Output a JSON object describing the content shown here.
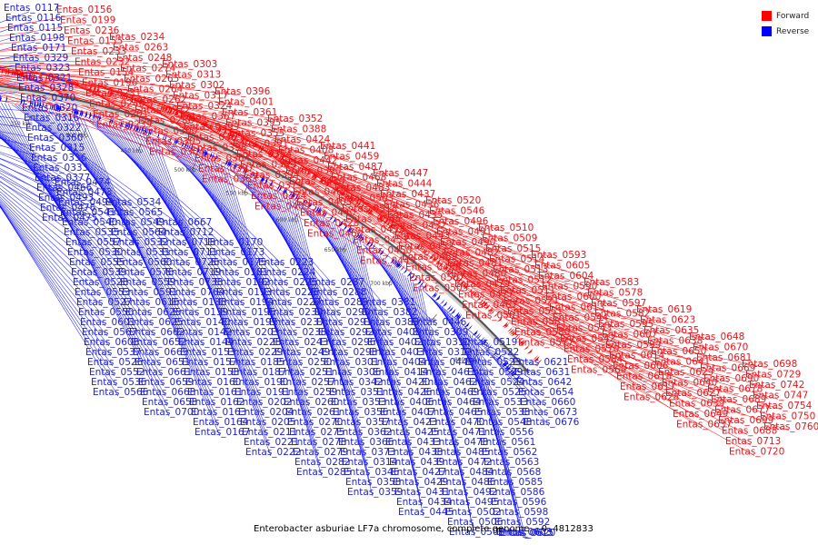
{
  "caption": "Enterobacter asburiae LF7a chromosome, complete genome. - 0..4812833",
  "legend": {
    "forward_label": "Forward",
    "reverse_label": "Reverse",
    "forward_color": "#ff0000",
    "reverse_color": "#0000ff"
  },
  "ticks": [
    "150 kbp",
    "200 kbp",
    "250 kbp",
    "300 kbp",
    "350 kbp",
    "400 kbp",
    "450 kbp",
    "500 kbp",
    "550 kbp",
    "600 kbp",
    "650 kbp",
    "700 kbp",
    "750 kbp",
    "800 kbp"
  ],
  "labels_forward": [
    "Entas_0156",
    "Entas_0199",
    "Entas_0236",
    "Entas_0155",
    "Entas_0233",
    "Entas_0232",
    "Entas_0154",
    "Entas_0196",
    "Entas_0231",
    "Entas_0240",
    "Entas_0201",
    "Entas_0239",
    "Entas_0234",
    "Entas_0263",
    "Entas_0248",
    "Entas_0274",
    "Entas_0265",
    "Entas_0264",
    "Entas_0262",
    "Entas_0272",
    "Entas_0286",
    "Entas_0300",
    "Entas_0305",
    "Entas_0304",
    "Entas_0303",
    "Entas_0313",
    "Entas_0302",
    "Entas_0317",
    "Entas_0324",
    "Entas_0367",
    "Entas_0399",
    "Entas_0365",
    "Entas_0398",
    "Entas_0364",
    "Entas_0397",
    "Entas_0363",
    "Entas_0396",
    "Entas_0401",
    "Entas_0361",
    "Entas_0395",
    "Entas_0355",
    "Entas_0391",
    "Entas_0354",
    "Entas_0389",
    "Entas_0394",
    "Entas_0379",
    "Entas_0374",
    "Entas_0409",
    "Entas_0352",
    "Entas_0388",
    "Entas_0424",
    "Entas_0408",
    "Entas_0442",
    "Entas_0390",
    "Entas_0430",
    "Entas_0463",
    "Entas_0405",
    "Entas_0440",
    "Entas_0428",
    "Entas_0460",
    "Entas_0441",
    "Entas_0459",
    "Entas_0487",
    "Entas_0468",
    "Entas_0483",
    "Entas_0503",
    "Entas_0518",
    "Entas_0545",
    "Entas_0453",
    "Entas_0451",
    "Entas_0450",
    "Entas_0449",
    "Entas_0447",
    "Entas_0444",
    "Entas_0437",
    "Entas_0436",
    "Entas_0435",
    "Entas_0432",
    "Entas_0443",
    "Entas_0452",
    "Entas_0489",
    "Entas_0488",
    "Entas_0507",
    "Entas_0505",
    "Entas_0520",
    "Entas_0546",
    "Entas_0496",
    "Entas_0491",
    "Entas_0490",
    "Entas_0482",
    "Entas_0481",
    "Entas_0480",
    "Entas_0479",
    "Entas_0477",
    "Entas_0467",
    "Entas_0501",
    "Entas_0510",
    "Entas_0509",
    "Entas_0515",
    "Entas_0514",
    "Entas_0513",
    "Entas_0512",
    "Entas_0511",
    "Entas_0521",
    "Entas_0551",
    "Entas_0581",
    "Entas_0580",
    "Entas_0577",
    "Entas_0593",
    "Entas_0605",
    "Entas_0604",
    "Entas_0590",
    "Entas_0600",
    "Entas_0613",
    "Entas_0544",
    "Entas_0543",
    "Entas_0542",
    "Entas_0570",
    "Entas_0584",
    "Entas_0569",
    "Entas_0583",
    "Entas_0578",
    "Entas_0597",
    "Entas_0582",
    "Entas_0595",
    "Entas_0607",
    "Entas_0599",
    "Entas_0614",
    "Entas_0606",
    "Entas_0618",
    "Entas_0617",
    "Entas_0628",
    "Entas_0619",
    "Entas_0623",
    "Entas_0635",
    "Entas_0638",
    "Entas_0650",
    "Entas_0641",
    "Entas_0629",
    "Entas_0640",
    "Entas_0627",
    "Entas_0639",
    "Entas_0649",
    "Entas_0637",
    "Entas_0648",
    "Entas_0670",
    "Entas_0681",
    "Entas_0669",
    "Entas_0690",
    "Entas_0678",
    "Entas_0689",
    "Entas_0677",
    "Entas_0699",
    "Entas_0688",
    "Entas_0713",
    "Entas_0720",
    "Entas_0698",
    "Entas_0729",
    "Entas_0742",
    "Entas_0747",
    "Entas_0754",
    "Entas_0750",
    "Entas_0760"
  ],
  "labels_reverse": [
    "Entas_0117",
    "Entas_0116",
    "Entas_0115",
    "Entas_0198",
    "Entas_0171",
    "Entas_0329",
    "Entas_0323",
    "Entas_0321",
    "Entas_0328",
    "Entas_0370",
    "Entas_0320",
    "Entas_0316",
    "Entas_0322",
    "Entas_0360",
    "Entas_0315",
    "Entas_0336",
    "Entas_0333",
    "Entas_0377",
    "Entas_0466",
    "Entas_0493",
    "Entas_0476",
    "Entas_0475",
    "Entas_0474",
    "Entas_0473",
    "Entas_0494",
    "Entas_0541",
    "Entas_0540",
    "Entas_0535",
    "Entas_0557",
    "Entas_0530",
    "Entas_0555",
    "Entas_0539",
    "Entas_0528",
    "Entas_0553",
    "Entas_0527",
    "Entas_0550",
    "Entas_0601",
    "Entas_0567",
    "Entas_0608",
    "Entas_0537",
    "Entas_0526",
    "Entas_0552",
    "Entas_0536",
    "Entas_0566",
    "Entas_0534",
    "Entas_0565",
    "Entas_0549",
    "Entas_0564",
    "Entas_0532",
    "Entas_0531",
    "Entas_0560",
    "Entas_0576",
    "Entas_0559",
    "Entas_0591",
    "Entas_0616",
    "Entas_0626",
    "Entas_0625",
    "Entas_0662",
    "Entas_0652",
    "Entas_0663",
    "Entas_0651",
    "Entas_0661",
    "Entas_0659",
    "Entas_0668",
    "Entas_0658",
    "Entas_0700",
    "Entas_0667",
    "Entas_0712",
    "Entas_0718",
    "Entas_0711",
    "Entas_0726",
    "Entas_0719",
    "Entas_0738",
    "Entas_0764",
    "Entas_0138",
    "Entas_0139",
    "Entas_0140",
    "Entas_0142",
    "Entas_0144",
    "Entas_0153",
    "Entas_0157",
    "Entas_0158",
    "Entas_0160",
    "Entas_0161",
    "Entas_0162",
    "Entas_0163",
    "Entas_0164",
    "Entas_0167",
    "Entas_0170",
    "Entas_0173",
    "Entas_0175",
    "Entas_0181",
    "Entas_0192",
    "Entas_0193",
    "Entas_0194",
    "Entas_0195",
    "Entas_0197",
    "Entas_0203",
    "Entas_0228",
    "Entas_0229",
    "Entas_0185",
    "Entas_0187",
    "Entas_0190",
    "Entas_0191",
    "Entas_0202",
    "Entas_0204",
    "Entas_0205",
    "Entas_0211",
    "Entas_0221",
    "Entas_0222",
    "Entas_0223",
    "Entas_0224",
    "Entas_0225",
    "Entas_0226",
    "Entas_0227",
    "Entas_0230",
    "Entas_0237",
    "Entas_0238",
    "Entas_0243",
    "Entas_0249",
    "Entas_0250",
    "Entas_0251",
    "Entas_0257",
    "Entas_0259",
    "Entas_0260",
    "Entas_0261",
    "Entas_0270",
    "Entas_0275",
    "Entas_0278",
    "Entas_0279",
    "Entas_0282",
    "Entas_0285",
    "Entas_0287",
    "Entas_0288",
    "Entas_0289",
    "Entas_0290",
    "Entas_0291",
    "Entas_0292",
    "Entas_0296",
    "Entas_0298",
    "Entas_0301",
    "Entas_0306",
    "Entas_0342",
    "Entas_0351",
    "Entas_0353",
    "Entas_0356",
    "Entas_0357",
    "Entas_0362",
    "Entas_0366",
    "Entas_0373",
    "Entas_0314",
    "Entas_0346",
    "Entas_0358",
    "Entas_0359",
    "Entas_0381",
    "Entas_0382",
    "Entas_0383",
    "Entas_0400",
    "Entas_0402",
    "Entas_0403",
    "Entas_0404",
    "Entas_0414",
    "Entas_0420",
    "Entas_0426",
    "Entas_0406",
    "Entas_0407",
    "Entas_0423",
    "Entas_0425",
    "Entas_0433",
    "Entas_0438",
    "Entas_0439",
    "Entas_0427",
    "Entas_0429",
    "Entas_0431",
    "Entas_0434",
    "Entas_0445",
    "Entas_0446",
    "Entas_0309",
    "Entas_0310",
    "Entas_0312",
    "Entas_0448",
    "Entas_0461",
    "Entas_0462",
    "Entas_0469",
    "Entas_0464",
    "Entas_0465",
    "Entas_0470",
    "Entas_0471",
    "Entas_0478",
    "Entas_0485",
    "Entas_0472",
    "Entas_0484",
    "Entas_0486",
    "Entas_0492",
    "Entas_0495",
    "Entas_0502",
    "Entas_0506",
    "Entas_0508",
    "Entas_0519",
    "Entas_0522",
    "Entas_0523",
    "Entas_0529",
    "Entas_0524",
    "Entas_0525",
    "Entas_0533",
    "Entas_0538",
    "Entas_0548",
    "Entas_0556",
    "Entas_0561",
    "Entas_0562",
    "Entas_0563",
    "Entas_0568",
    "Entas_0585",
    "Entas_0586",
    "Entas_0596",
    "Entas_0598",
    "Entas_0592",
    "Entas_0603",
    "Entas_0615",
    "Entas_0620",
    "Entas_0621",
    "Entas_0631",
    "Entas_0642",
    "Entas_0654",
    "Entas_0660",
    "Entas_0673",
    "Entas_0676"
  ]
}
